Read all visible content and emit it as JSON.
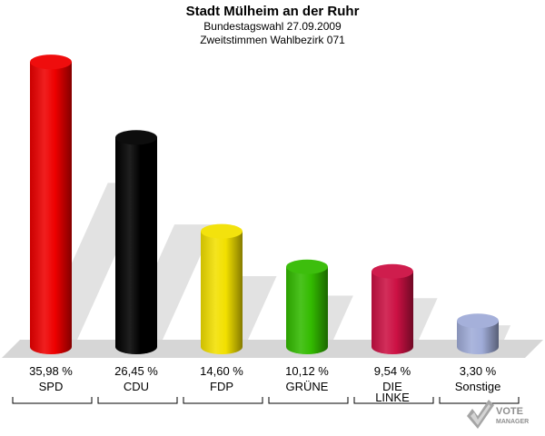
{
  "header": {
    "title": "Stadt Mülheim an der Ruhr",
    "subtitle1": "Bundestagswahl 27.09.2009",
    "subtitle2": "Zweitstimmen Wahlbezirk 071"
  },
  "chart_data": {
    "type": "bar",
    "title": "Stadt Mülheim an der Ruhr",
    "subtitle": [
      "Bundestagswahl 27.09.2009",
      "Zweitstimmen Wahlbezirk 071"
    ],
    "categories": [
      "SPD",
      "CDU",
      "FDP",
      "GRÜNE",
      "DIE LINKE",
      "Sonstige"
    ],
    "category_lines": [
      [
        "SPD"
      ],
      [
        "CDU"
      ],
      [
        "FDP"
      ],
      [
        "GRÜNE"
      ],
      [
        "DIE",
        "LINKE"
      ],
      [
        "Sonstige"
      ]
    ],
    "values": [
      35.98,
      26.45,
      14.6,
      10.12,
      9.54,
      3.3
    ],
    "value_labels": [
      "35,98 %",
      "26,45 %",
      "14,60 %",
      "10,12 %",
      "9,54 %",
      "3,30 %"
    ],
    "colors": [
      "#ee0000",
      "#000000",
      "#f2e000",
      "#33bb00",
      "#cc1144",
      "#a0acd8"
    ],
    "unit": "%",
    "grid": false,
    "legend": "none"
  },
  "logo": {
    "line1": "VOTE",
    "line2": "MANAGER"
  }
}
